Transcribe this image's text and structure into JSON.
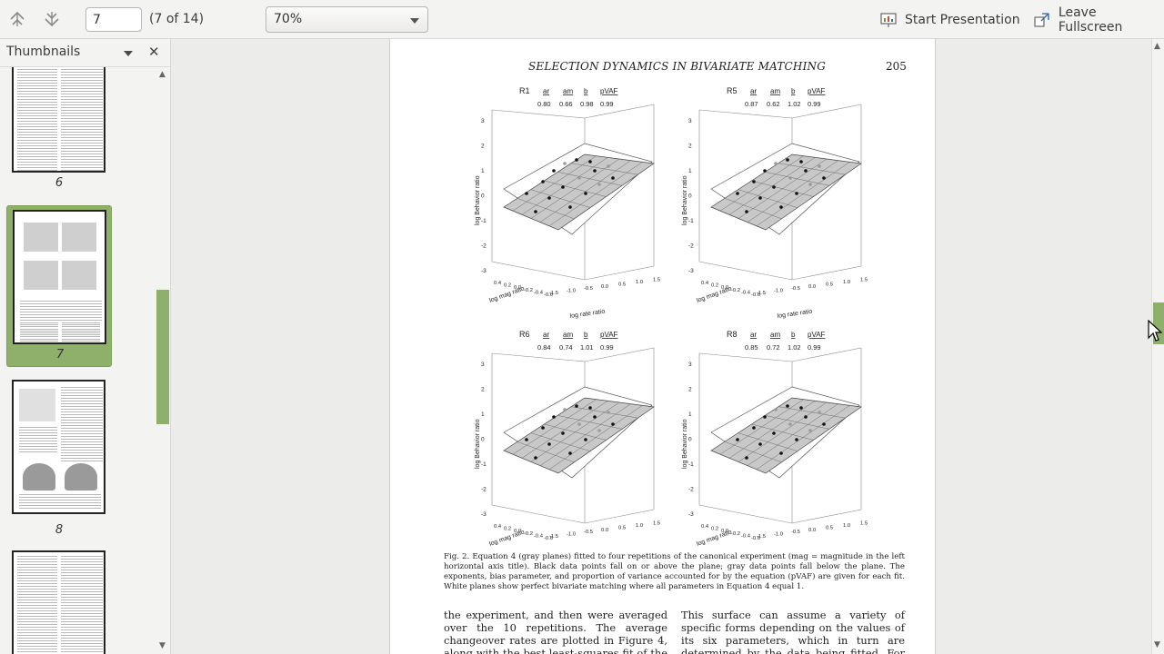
{
  "toolbar": {
    "prev_icon": "page-up-icon",
    "next_icon": "page-down-icon",
    "page_value": "7",
    "page_count": "(7 of 14)",
    "zoom_value": "70%",
    "start_presentation": "Start Presentation",
    "leave_fullscreen": "Leave Fullscreen"
  },
  "sidebar": {
    "title": "Thumbnails",
    "close": "✕",
    "thumbnails": [
      {
        "label": "6"
      },
      {
        "label": "7",
        "selected": true
      },
      {
        "label": "8"
      },
      {
        "label": ""
      }
    ]
  },
  "document": {
    "running_head": "SELECTION DYNAMICS IN BIVARIATE MATCHING",
    "page_number": "205",
    "plots": [
      {
        "name": "R1",
        "ar": "0.80",
        "am": "0.66",
        "b": "0.98",
        "pvaf": "0.99"
      },
      {
        "name": "R5",
        "ar": "0.87",
        "am": "0.62",
        "b": "1.02",
        "pvaf": "0.99"
      },
      {
        "name": "R6",
        "ar": "0.84",
        "am": "0.74",
        "b": "1.01",
        "pvaf": "0.99"
      },
      {
        "name": "R8",
        "ar": "0.85",
        "am": "0.72",
        "b": "1.02",
        "pvaf": "0.99"
      }
    ],
    "plot_headers": {
      "ar": "ar",
      "am": "am",
      "b": "b",
      "pvaf": "pVAF"
    },
    "axis": {
      "z_label": "log Behavior ratio",
      "mag_label": "log mag ratio",
      "rate_label": "log rate ratio",
      "z_ticks": [
        "3",
        "2",
        "1",
        "0",
        "-1",
        "-2",
        "-3"
      ],
      "rate_ticks": [
        "-1.5",
        "-1.0",
        "-0.5",
        "0.0",
        "0.5",
        "1.0",
        "1.5"
      ],
      "mag_ticks": [
        "0.4",
        "0.2",
        "0.0",
        "-0.2",
        "-0.4",
        "-0.6"
      ]
    },
    "caption": "Fig. 2.   Equation 4 (gray planes) fitted to four repetitions of the canonical experiment (mag = magnitude in the left horizontal axis title). Black data points fall on or above the plane; gray data points fall below the plane. The exponents, bias parameter, and proportion of variance accounted for by the equation (pVAF) are given for each fit. White planes show perfect bivariate matching where all parameters in Equation 4 equal 1.",
    "col_left": "the experiment, and then were averaged over the 10 repetitions. The average changeover rates are plotted in Figure 4, along with the best least-squares fit of the general quadric",
    "col_right": "This surface can assume a variety of specific forms depending on the values of its six parameters, which in turn are determined by the data being fitted. For the average change-"
  }
}
